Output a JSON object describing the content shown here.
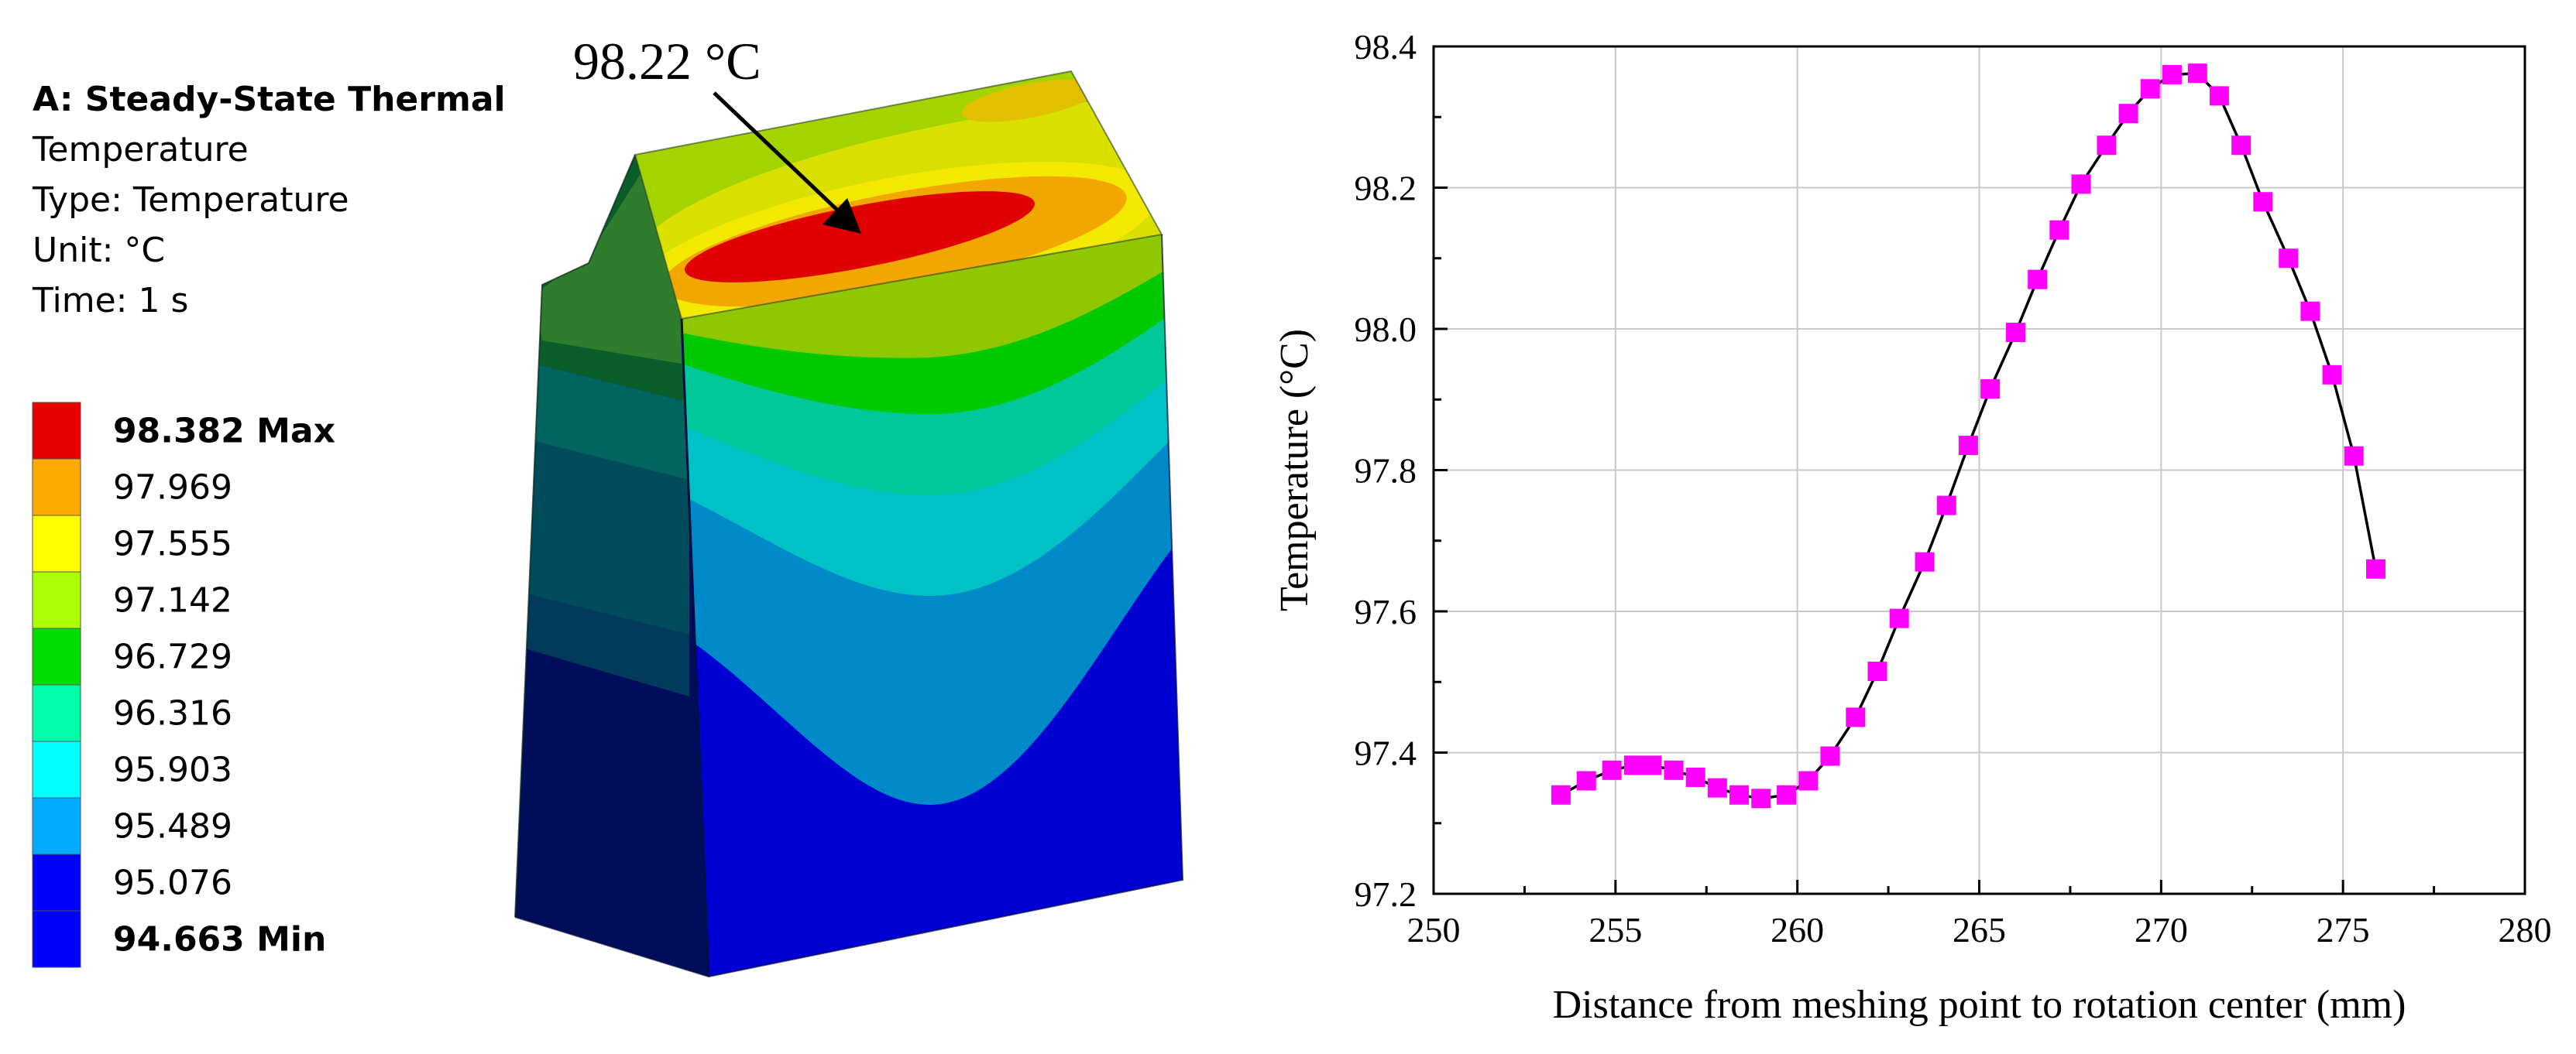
{
  "legend": {
    "title": "A: Steady-State Thermal",
    "lines": [
      "Temperature",
      "Type: Temperature",
      "Unit: °C",
      "Time: 1 s"
    ],
    "items": [
      {
        "label": "98.382 Max",
        "color": "#e60000",
        "bold": true
      },
      {
        "label": "97.969",
        "color": "#ffaa00",
        "bold": false
      },
      {
        "label": "97.555",
        "color": "#ffff00",
        "bold": false
      },
      {
        "label": "97.142",
        "color": "#aaff00",
        "bold": false
      },
      {
        "label": "96.729",
        "color": "#00dd00",
        "bold": false
      },
      {
        "label": "96.316",
        "color": "#00ffaa",
        "bold": false
      },
      {
        "label": "95.903",
        "color": "#00ffff",
        "bold": false
      },
      {
        "label": "95.489",
        "color": "#00aaff",
        "bold": false
      },
      {
        "label": "95.076",
        "color": "#0000ff",
        "bold": false
      },
      {
        "label": "94.663 Min",
        "color": "#0000ff",
        "bold": true
      }
    ]
  },
  "model": {
    "annotation": "98.22 °C"
  },
  "chart_data": {
    "type": "line",
    "title": "",
    "xlabel": "Distance from meshing point to rotation center (mm)",
    "ylabel": "Temperature (°C)",
    "xlim": [
      250,
      280
    ],
    "ylim": [
      97.2,
      98.4
    ],
    "xticks": [
      250,
      255,
      260,
      265,
      270,
      275,
      280
    ],
    "yticks": [
      97.2,
      97.4,
      97.6,
      97.8,
      98.0,
      98.2,
      98.4
    ],
    "ytick_labels": [
      "97.2",
      "97.4",
      "97.6",
      "97.8",
      "98.0",
      "98.2",
      "98.4"
    ],
    "grid": true,
    "marker_color": "#ff00ff",
    "line_color": "#000000",
    "series": [
      {
        "name": "Temperature",
        "x": [
          253.5,
          254.2,
          254.9,
          255.5,
          256.0,
          256.6,
          257.2,
          257.8,
          258.4,
          259.0,
          259.7,
          260.3,
          260.9,
          261.6,
          262.2,
          262.8,
          263.5,
          264.1,
          264.7,
          265.3,
          266.0,
          266.6,
          267.2,
          267.8,
          268.5,
          269.1,
          269.7,
          270.3,
          271.0,
          271.6,
          272.2,
          272.8,
          273.5,
          274.1,
          274.7,
          275.3,
          275.9
        ],
        "y": [
          97.34,
          97.36,
          97.375,
          97.382,
          97.382,
          97.375,
          97.365,
          97.35,
          97.34,
          97.335,
          97.34,
          97.36,
          97.395,
          97.45,
          97.515,
          97.59,
          97.67,
          97.75,
          97.835,
          97.915,
          97.995,
          98.07,
          98.14,
          98.205,
          98.26,
          98.305,
          98.34,
          98.36,
          98.362,
          98.33,
          98.26,
          98.18,
          98.1,
          98.025,
          97.935,
          97.82,
          97.66
        ]
      }
    ]
  }
}
